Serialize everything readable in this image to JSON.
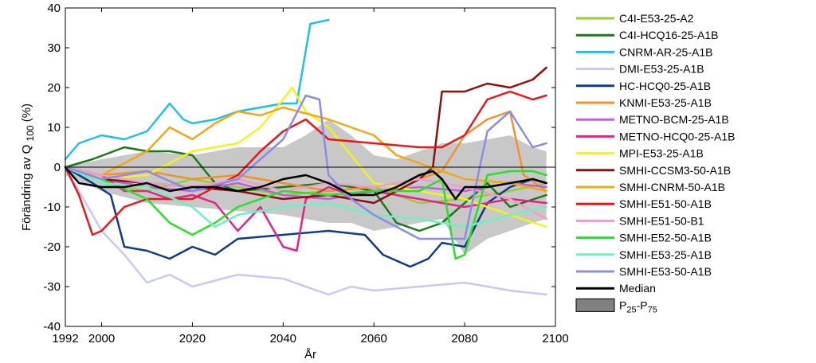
{
  "chart_data": {
    "type": "line",
    "title": "",
    "xlabel": "År",
    "ylabel": "Förändring av Q",
    "ylabel_sub": "100",
    "ylabel_unit": " (%)",
    "xlim": [
      1992,
      2100
    ],
    "ylim": [
      -40,
      40
    ],
    "x_ticks": [
      1992,
      2000,
      2020,
      2040,
      2060,
      2080,
      2100
    ],
    "y_ticks": [
      -40,
      -30,
      -20,
      -10,
      0,
      10,
      20,
      30,
      40
    ],
    "zero_line": true,
    "band": {
      "name": "P25-P75",
      "label_main": "P",
      "label_sub1": "25",
      "label_dash": "-P",
      "label_sub2": "75",
      "color": "#c8c8c8",
      "x": [
        1992,
        2000,
        2010,
        2020,
        2030,
        2040,
        2045,
        2050,
        2055,
        2060,
        2065,
        2070,
        2075,
        2080,
        2085,
        2090,
        2095,
        2098
      ],
      "upper": [
        0,
        2,
        4,
        3,
        5,
        5,
        8,
        12,
        8,
        3,
        2,
        4,
        6,
        6,
        7,
        8,
        5,
        4
      ],
      "lower": [
        -2,
        -6,
        -9,
        -10,
        -11,
        -12,
        -13,
        -14,
        -14,
        -16,
        -15,
        -14,
        -13,
        -22,
        -18,
        -16,
        -14,
        -13
      ]
    },
    "series": [
      {
        "name": "C4I-E53-25-A2",
        "color": "#9acd32",
        "width": 2.5,
        "x": [
          1992,
          2000,
          2010,
          2020,
          2030,
          2040,
          2050,
          2060,
          2070,
          2080,
          2090,
          2098
        ],
        "values": [
          0,
          -4,
          -6,
          -3,
          -5,
          -7,
          -6,
          -5,
          -9,
          -8,
          -6,
          -4
        ]
      },
      {
        "name": "C4I-HCQ16-25-A1B",
        "color": "#1a7a1a",
        "width": 2.5,
        "x": [
          1992,
          1998,
          2005,
          2010,
          2015,
          2020,
          2025,
          2030,
          2040,
          2050,
          2060,
          2065,
          2070,
          2075,
          2080,
          2085,
          2090,
          2098
        ],
        "values": [
          0,
          2,
          5,
          4,
          4,
          3,
          -4,
          -6,
          -5,
          -4,
          -6,
          -14,
          -16,
          -14,
          -9,
          -4,
          -10,
          -7
        ]
      },
      {
        "name": "CNRM-AR-25-A1B",
        "color": "#1ec0e8",
        "width": 2.5,
        "x": [
          1992,
          1995,
          2000,
          2005,
          2010,
          2015,
          2018,
          2020,
          2025,
          2030,
          2035,
          2040,
          2043,
          2046,
          2050
        ],
        "values": [
          2,
          6,
          8,
          7,
          9,
          16,
          12,
          11,
          12,
          14,
          15,
          16,
          16,
          36,
          37
        ]
      },
      {
        "name": "DMI-E53-25-A1B",
        "color": "#c8c8f0",
        "width": 2.5,
        "x": [
          1992,
          1995,
          2000,
          2005,
          2010,
          2015,
          2020,
          2030,
          2040,
          2050,
          2055,
          2060,
          2070,
          2080,
          2090,
          2098
        ],
        "values": [
          0,
          -6,
          -16,
          -22,
          -29,
          -27,
          -30,
          -27,
          -28,
          -32,
          -30,
          -31,
          -30,
          -29,
          -31,
          -32
        ]
      },
      {
        "name": "HC-HCQ0-25-A1B",
        "color": "#123a8c",
        "width": 2.5,
        "x": [
          1992,
          1998,
          2002,
          2005,
          2010,
          2015,
          2020,
          2025,
          2030,
          2040,
          2050,
          2058,
          2062,
          2068,
          2072,
          2075,
          2080,
          2085,
          2090,
          2095,
          2098
        ],
        "values": [
          0,
          -4,
          -7,
          -20,
          -21,
          -23,
          -20,
          -22,
          -18,
          -17,
          -16,
          -17,
          -22,
          -25,
          -23,
          -19,
          -20,
          -9,
          -5,
          -3,
          -4
        ]
      },
      {
        "name": "KNMI-E53-25-A1B",
        "color": "#f0922a",
        "width": 2.5,
        "x": [
          1992,
          2000,
          2010,
          2020,
          2030,
          2040,
          2050,
          2060,
          2070,
          2075,
          2080,
          2085,
          2090,
          2093,
          2098
        ],
        "values": [
          0,
          -2,
          -1,
          -3,
          -2,
          -4,
          -6,
          -5,
          -3,
          -1,
          8,
          12,
          14,
          -2,
          -6
        ]
      },
      {
        "name": "METNO-BCM-25-A1B",
        "color": "#c060e0",
        "width": 2.5,
        "x": [
          1992,
          2000,
          2010,
          2020,
          2030,
          2040,
          2050,
          2060,
          2070,
          2080,
          2090,
          2098
        ],
        "values": [
          0,
          -3,
          -5,
          -6,
          -4,
          -7,
          -8,
          -6,
          -5,
          -6,
          -4,
          -5
        ]
      },
      {
        "name": "METNO-HCQ0-25-A1B",
        "color": "#e8208a",
        "width": 2.5,
        "x": [
          1992,
          2000,
          2005,
          2010,
          2015,
          2020,
          2025,
          2030,
          2035,
          2040,
          2043,
          2045,
          2050,
          2055,
          2060,
          2070,
          2080,
          2090,
          2098
        ],
        "values": [
          0,
          -2,
          -6,
          -6,
          -8,
          -7,
          -9,
          -16,
          -10,
          -20,
          -21,
          -8,
          -5,
          -7,
          -6,
          -8,
          -10,
          -8,
          -9
        ]
      },
      {
        "name": "MPI-E53-25-A1B",
        "color": "#f2f21e",
        "width": 2.5,
        "x": [
          1992,
          2000,
          2010,
          2020,
          2030,
          2035,
          2040,
          2042,
          2045,
          2050,
          2055,
          2060,
          2070,
          2080,
          2090,
          2098
        ],
        "values": [
          0,
          -3,
          -2,
          4,
          6,
          10,
          17,
          20,
          14,
          10,
          3,
          -4,
          -6,
          -8,
          -12,
          -15
        ]
      },
      {
        "name": "SMHI-CCSM3-50-A1B",
        "color": "#8b1010",
        "width": 2.5,
        "x": [
          1992,
          2000,
          2010,
          2020,
          2030,
          2040,
          2050,
          2060,
          2065,
          2070,
          2073,
          2075,
          2080,
          2085,
          2090,
          2095,
          2098
        ],
        "values": [
          0,
          -3,
          -4,
          -5,
          -6,
          -8,
          -7,
          -9,
          -6,
          -3,
          0,
          19,
          19,
          21,
          20,
          22,
          25
        ]
      },
      {
        "name": "SMHI-CNRM-50-A1B",
        "color": "#f0a818",
        "width": 2.5,
        "x": [
          1992,
          2000,
          2010,
          2015,
          2020,
          2025,
          2030,
          2035,
          2040,
          2050,
          2060,
          2065,
          2070,
          2080,
          2090,
          2098
        ],
        "values": [
          0,
          -2,
          4,
          10,
          7,
          11,
          14,
          13,
          15,
          12,
          8,
          3,
          1,
          -3,
          -4,
          -6
        ]
      },
      {
        "name": "SMHI-E51-50-A1B",
        "color": "#e81818",
        "width": 2.5,
        "x": [
          1992,
          1995,
          1998,
          2000,
          2005,
          2010,
          2020,
          2030,
          2035,
          2040,
          2045,
          2050,
          2060,
          2070,
          2075,
          2080,
          2085,
          2090,
          2095,
          2098
        ],
        "values": [
          0,
          -7,
          -17,
          -16,
          -10,
          -8,
          -8,
          -2,
          4,
          9,
          12,
          7,
          6,
          5,
          5,
          8,
          17,
          19,
          17,
          18
        ]
      },
      {
        "name": "SMHI-E51-50-B1",
        "color": "#f49cc4",
        "width": 2.5,
        "x": [
          1992,
          2000,
          2010,
          2020,
          2030,
          2040,
          2050,
          2060,
          2070,
          2080,
          2090,
          2098
        ],
        "values": [
          0,
          -2,
          -4,
          -5,
          -3,
          -6,
          -4,
          -5,
          -3,
          -5,
          -8,
          -13
        ]
      },
      {
        "name": "SMHI-E52-50-A1B",
        "color": "#28e028",
        "width": 2.5,
        "x": [
          1992,
          2000,
          2010,
          2015,
          2020,
          2025,
          2030,
          2040,
          2050,
          2060,
          2070,
          2075,
          2078,
          2080,
          2085,
          2090,
          2095,
          2098
        ],
        "values": [
          0,
          -3,
          -8,
          -14,
          -17,
          -14,
          -10,
          -6,
          -7,
          -6,
          -6,
          -3,
          -23,
          -22,
          -2,
          -1,
          -1,
          -2
        ]
      },
      {
        "name": "SMHI-E53-25-A1B",
        "color": "#70f0c0",
        "width": 2.5,
        "x": [
          1992,
          2000,
          2010,
          2020,
          2025,
          2030,
          2040,
          2050,
          2060,
          2070,
          2080,
          2090,
          2098
        ],
        "values": [
          0,
          -4,
          -5,
          -10,
          -15,
          -12,
          -10,
          -9,
          -12,
          -13,
          -15,
          -12,
          -10
        ]
      },
      {
        "name": "SMHI-E53-50-A1B",
        "color": "#8c8ce6",
        "width": 2.5,
        "x": [
          1992,
          2000,
          2010,
          2020,
          2030,
          2040,
          2045,
          2048,
          2050,
          2055,
          2060,
          2070,
          2080,
          2085,
          2090,
          2095,
          2098
        ],
        "values": [
          0,
          -3,
          -1,
          -6,
          -3,
          7,
          18,
          17,
          -2,
          -8,
          -12,
          -18,
          -18,
          9,
          14,
          5,
          6
        ]
      },
      {
        "name": "Median",
        "color": "#000000",
        "width": 2.5,
        "x": [
          1992,
          1995,
          2000,
          2005,
          2010,
          2015,
          2020,
          2025,
          2030,
          2035,
          2040,
          2045,
          2050,
          2055,
          2060,
          2065,
          2070,
          2073,
          2075,
          2078,
          2080,
          2085,
          2090,
          2095,
          2098
        ],
        "values": [
          0,
          -4,
          -5,
          -5,
          -4,
          -6,
          -5,
          -5,
          -6,
          -5,
          -3,
          -2,
          -4,
          -7,
          -7,
          -5,
          -2,
          -1,
          -3,
          -8,
          -5,
          -5,
          -4,
          -3,
          -4
        ]
      }
    ]
  }
}
